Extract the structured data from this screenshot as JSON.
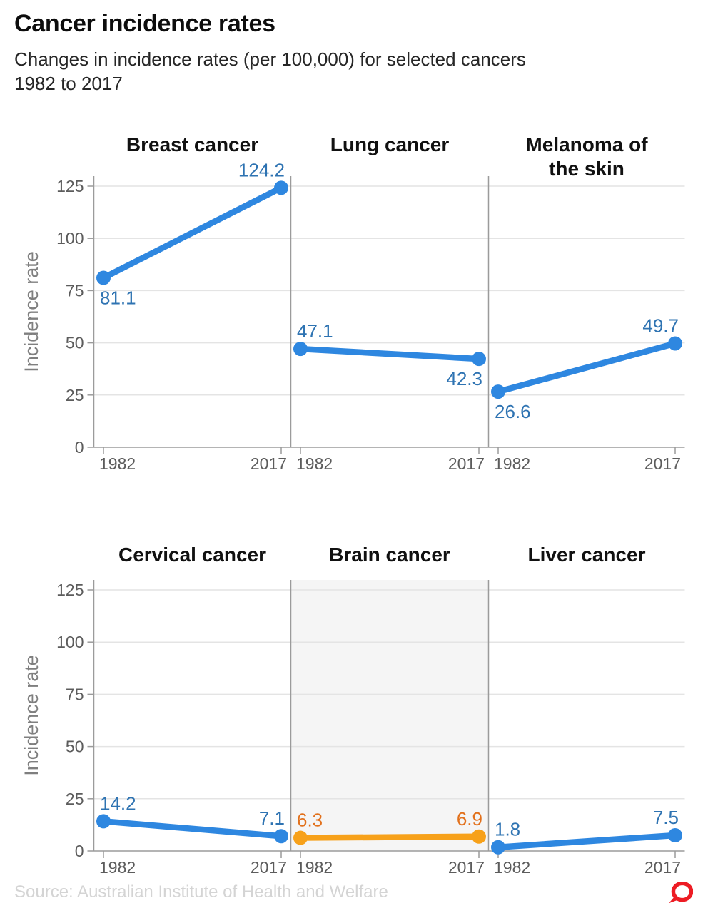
{
  "header": {
    "title": "Cancer incidence rates",
    "subtitle_lines": [
      "Changes in incidence rates (per 100,000) for selected cancers",
      "1982 to 2017"
    ]
  },
  "chart_data": {
    "type": "line",
    "layout": "small_multiples_2x3",
    "x": [
      "1982",
      "2017"
    ],
    "ylabel": "Incidence rate",
    "ylim": [
      0,
      125
    ],
    "yticks": [
      0,
      25,
      50,
      75,
      100,
      125
    ],
    "grid": true,
    "legend": "none",
    "colors": {
      "line_blue": "#2e87e0",
      "label_blue": "#2e73b2",
      "line_orange": "#f7a11a",
      "label_orange": "#e2711c",
      "grid_line": "#e4e4e4",
      "axis_line": "#9b9b9b",
      "tick_text": "#5c5c5c",
      "axis_title_text": "#7f7f7f",
      "panel_title_text": "#111111",
      "highlight_bg": "#f5f5f5"
    },
    "panels": [
      {
        "row": 0,
        "col": 0,
        "title_lines": [
          "Breast cancer"
        ],
        "values": [
          81.1,
          124.2
        ],
        "value_labels": [
          "81.1",
          "124.2"
        ],
        "label_pos": [
          "below",
          "above"
        ],
        "highlighted": false,
        "series_color": "blue"
      },
      {
        "row": 0,
        "col": 1,
        "title_lines": [
          "Lung cancer"
        ],
        "values": [
          47.1,
          42.3
        ],
        "value_labels": [
          "47.1",
          "42.3"
        ],
        "label_pos": [
          "above",
          "below"
        ],
        "highlighted": false,
        "series_color": "blue"
      },
      {
        "row": 0,
        "col": 2,
        "title_lines": [
          "Melanoma of",
          "the skin"
        ],
        "values": [
          26.6,
          49.7
        ],
        "value_labels": [
          "26.6",
          "49.7"
        ],
        "label_pos": [
          "below",
          "above"
        ],
        "highlighted": false,
        "series_color": "blue"
      },
      {
        "row": 1,
        "col": 0,
        "title_lines": [
          "Cervical cancer"
        ],
        "values": [
          14.2,
          7.1
        ],
        "value_labels": [
          "14.2",
          "7.1"
        ],
        "label_pos": [
          "above",
          "above"
        ],
        "highlighted": false,
        "series_color": "blue"
      },
      {
        "row": 1,
        "col": 1,
        "title_lines": [
          "Brain cancer"
        ],
        "values": [
          6.3,
          6.9
        ],
        "value_labels": [
          "6.3",
          "6.9"
        ],
        "label_pos": [
          "above",
          "above"
        ],
        "highlighted": true,
        "series_color": "orange"
      },
      {
        "row": 1,
        "col": 2,
        "title_lines": [
          "Liver cancer"
        ],
        "values": [
          1.8,
          7.5
        ],
        "value_labels": [
          "1.8",
          "7.5"
        ],
        "label_pos": [
          "above",
          "above"
        ],
        "highlighted": false,
        "series_color": "blue"
      }
    ]
  },
  "footer": {
    "source": "Source: Australian Institute of Health and Welfare",
    "logo": {
      "name": "speech-bubble-logo",
      "color": "#ed1c24"
    }
  }
}
